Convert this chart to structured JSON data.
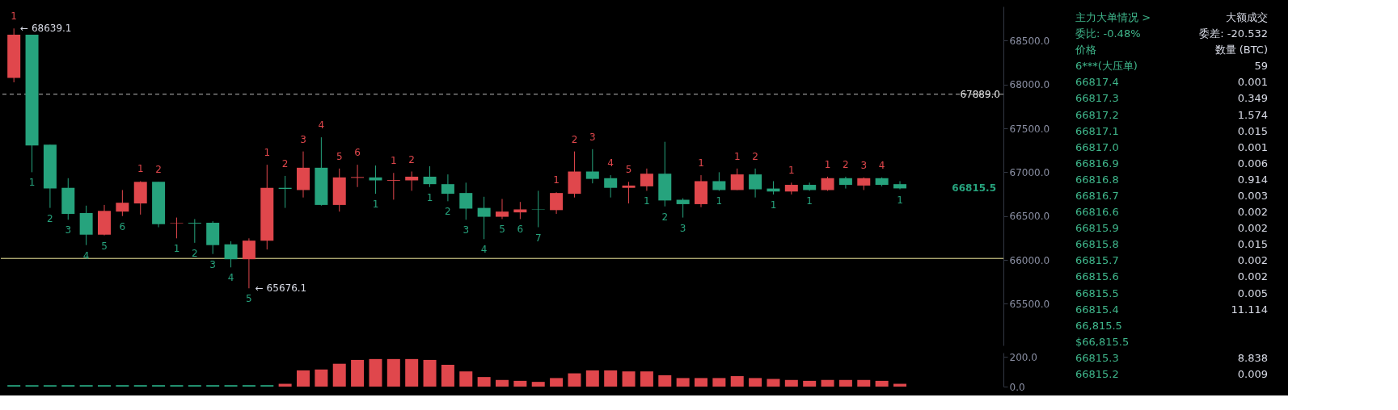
{
  "chart_data": [
    {
      "type": "candlestick",
      "categories": [
        null,
        null,
        null,
        null,
        null,
        null,
        null,
        null,
        null,
        null,
        null,
        null,
        null,
        null,
        null,
        null,
        null,
        null,
        null,
        null,
        null,
        null,
        null,
        null,
        null,
        null,
        null,
        null,
        null,
        null,
        null,
        null,
        null,
        null,
        null,
        null,
        null,
        null,
        null,
        null,
        null,
        null,
        null,
        null,
        null,
        null,
        null,
        null,
        null,
        null,
        null,
        null,
        null,
        null,
        null
      ],
      "ohlc": [
        [
          68076,
          68639.1,
          68025,
          68568
        ],
        [
          68568,
          68568,
          67000,
          67305
        ],
        [
          67314,
          67314,
          66593,
          66814
        ],
        [
          66822,
          66932,
          66458,
          66525
        ],
        [
          66534,
          66619,
          66169,
          66288
        ],
        [
          66288,
          66627,
          66280,
          66559
        ],
        [
          66551,
          66797,
          66500,
          66652
        ],
        [
          66644,
          66898,
          66517,
          66890
        ],
        [
          66890,
          66890,
          66373,
          66407
        ],
        [
          66415,
          66483,
          66246,
          66420
        ],
        [
          66424,
          66466,
          66195,
          66415
        ],
        [
          66424,
          66441,
          66068,
          66169
        ],
        [
          66178,
          66212,
          65915,
          66008
        ],
        [
          66008,
          66246,
          65676.1,
          66220
        ],
        [
          66220,
          67085,
          66119,
          66822
        ],
        [
          66822,
          66958,
          66593,
          66810
        ],
        [
          66797,
          67237,
          66712,
          67051
        ],
        [
          67051,
          67398,
          66619,
          66627
        ],
        [
          66627,
          67042,
          66551,
          66941
        ],
        [
          66936,
          67085,
          66831,
          66945
        ],
        [
          66941,
          67076,
          66754,
          66907
        ],
        [
          66903,
          66992,
          66687,
          66911
        ],
        [
          66907,
          67008,
          66788,
          66949
        ],
        [
          66949,
          67068,
          66831,
          66864
        ],
        [
          66864,
          66975,
          66669,
          66754
        ],
        [
          66763,
          66881,
          66458,
          66585
        ],
        [
          66593,
          66720,
          66237,
          66492
        ],
        [
          66492,
          66695,
          66466,
          66551
        ],
        [
          66542,
          66661,
          66466,
          66576
        ],
        [
          66580,
          66788,
          66373,
          66576
        ],
        [
          66568,
          66771,
          66525,
          66763
        ],
        [
          66754,
          67237,
          66712,
          67008
        ],
        [
          67008,
          67263,
          66873,
          66924
        ],
        [
          66932,
          66966,
          66712,
          66822
        ],
        [
          66822,
          66890,
          66644,
          66848
        ],
        [
          66839,
          67042,
          66788,
          66983
        ],
        [
          66983,
          67347,
          66610,
          66678
        ],
        [
          66686,
          66703,
          66483,
          66636
        ],
        [
          66636,
          66966,
          66602,
          66898
        ],
        [
          66898,
          67000,
          66788,
          66797
        ],
        [
          66797,
          67042,
          66797,
          66975
        ],
        [
          66975,
          67042,
          66712,
          66805
        ],
        [
          66814,
          66898,
          66746,
          66780
        ],
        [
          66780,
          66881,
          66746,
          66856
        ],
        [
          66856,
          66881,
          66788,
          66797
        ],
        [
          66797,
          66949,
          66788,
          66932
        ],
        [
          66932,
          66949,
          66814,
          66856
        ],
        [
          66848,
          66941,
          66797,
          66932
        ],
        [
          66932,
          66941,
          66839,
          66856
        ],
        [
          66864,
          66898,
          66805,
          66815.5
        ],
        null,
        null,
        null,
        null,
        null
      ],
      "colors": [
        "#e0474c",
        "#26a37d",
        "#26a37d",
        "#26a37d",
        "#26a37d",
        "#e0474c",
        "#e0474c",
        "#e0474c",
        "#26a37d",
        "#e0474c",
        "#26a37d",
        "#26a37d",
        "#26a37d",
        "#e0474c",
        "#e0474c",
        "#26a37d",
        "#e0474c",
        "#26a37d",
        "#e0474c",
        "#e0474c",
        "#26a37d",
        "#e0474c",
        "#e0474c",
        "#26a37d",
        "#26a37d",
        "#26a37d",
        "#26a37d",
        "#e0474c",
        "#e0474c",
        "#26a37d",
        "#e0474c",
        "#e0474c",
        "#26a37d",
        "#26a37d",
        "#e0474c",
        "#e0474c",
        "#26a37d",
        "#26a37d",
        "#e0474c",
        "#26a37d",
        "#e0474c",
        "#26a37d",
        "#26a37d",
        "#e0474c",
        "#26a37d",
        "#e0474c",
        "#26a37d",
        "#e0474c",
        "#26a37d",
        "#26a37d",
        null,
        null,
        null,
        null,
        null
      ],
      "value_labels": [
        "1",
        "1",
        "2",
        "3",
        "4",
        "5",
        "6",
        "1",
        "2",
        "1",
        "2",
        "3",
        "4",
        "5",
        "1",
        "2",
        "3",
        "4",
        "5",
        "6",
        "1",
        "1",
        "2",
        "1",
        "2",
        "3",
        "4",
        "5",
        "6",
        "7",
        "1",
        "2",
        "3",
        "4",
        "5",
        "1",
        "2",
        "3",
        "1",
        "1",
        "1",
        "2",
        "1",
        "1",
        "1",
        "1",
        "2",
        "3",
        "4",
        "1",
        null,
        null,
        null,
        null,
        null
      ],
      "ylim": [
        65025,
        68890
      ],
      "yticks": [
        {
          "value": 65500,
          "label": "65500.0"
        },
        {
          "value": 66000,
          "label": "66000.0"
        },
        {
          "value": 66500,
          "label": "66500.0"
        },
        {
          "value": 67000,
          "label": "67000.0"
        },
        {
          "value": 67500,
          "label": "67500.0"
        },
        {
          "value": 68000,
          "label": "68000.0"
        },
        {
          "value": 68500,
          "label": "68500.0"
        }
      ],
      "ref_lines": [
        {
          "axis": "y",
          "value": 67889.0,
          "label": "67889.0",
          "color": "#bbbbbb",
          "line_style": "dashed"
        },
        {
          "axis": "y",
          "value": 66017,
          "color": "#f3eea0"
        }
      ],
      "annotations": [
        "← 68639.1",
        "← 65676.1",
        "66815.5",
        "主力大单情况 >\t大额成交",
        "委比: -0.48%\t委差: -20.532",
        "价格\t数量 (BTC)",
        "6***(大压单)\t59",
        "66817.4\t0.001",
        "66817.3\t0.349",
        "66817.2\t1.574",
        "66817.1\t0.015",
        "66817.0\t0.001",
        "66816.9\t0.006",
        "66816.8\t0.914",
        "66816.7\t0.003",
        "66816.6\t0.002",
        "66815.9\t0.002",
        "66815.8\t0.015",
        "66815.7\t0.002",
        "66815.6\t0.002",
        "66815.5\t0.005",
        "66815.4\t11.114",
        "66,815.5",
        "$66,815.5",
        "66815.3\t8.838",
        "66815.2\t0.009"
      ],
      "grid": false
    },
    {
      "type": "bar",
      "categories": [
        null,
        null,
        null,
        null,
        null,
        null,
        null,
        null,
        null,
        null,
        null,
        null,
        null,
        null,
        null,
        null,
        null,
        null,
        null,
        null,
        null,
        null,
        null,
        null,
        null,
        null,
        null,
        null,
        null,
        null,
        null,
        null,
        null,
        null,
        null,
        null,
        null,
        null,
        null,
        null,
        null,
        null,
        null,
        null,
        null,
        null,
        null,
        null,
        null,
        null,
        null,
        null,
        null,
        null,
        null
      ],
      "values": [
        10,
        10,
        10,
        10,
        10,
        10,
        10,
        10,
        10,
        10,
        10,
        10,
        10,
        10,
        10,
        19,
        110,
        116,
        155,
        181,
        187,
        187,
        187,
        181,
        148,
        103,
        65,
        45,
        39,
        32,
        58,
        90,
        110,
        110,
        103,
        103,
        77,
        58,
        58,
        58,
        71,
        58,
        52,
        45,
        39,
        45,
        45,
        45,
        39,
        19,
        null,
        null,
        null,
        null,
        null
      ],
      "colors": [
        "#26a37d",
        "#26a37d",
        "#26a37d",
        "#26a37d",
        "#26a37d",
        "#26a37d",
        "#26a37d",
        "#26a37d",
        "#26a37d",
        "#26a37d",
        "#26a37d",
        "#26a37d",
        "#26a37d",
        "#26a37d",
        "#26a37d",
        "#e0474c",
        "#e0474c",
        "#e0474c",
        "#e0474c",
        "#e0474c",
        "#e0474c",
        "#e0474c",
        "#e0474c",
        "#e0474c",
        "#e0474c",
        "#e0474c",
        "#e0474c",
        "#e0474c",
        "#e0474c",
        "#e0474c",
        "#e0474c",
        "#e0474c",
        "#e0474c",
        "#e0474c",
        "#e0474c",
        "#e0474c",
        "#e0474c",
        "#e0474c",
        "#e0474c",
        "#e0474c",
        "#e0474c",
        "#e0474c",
        "#e0474c",
        "#e0474c",
        "#e0474c",
        "#e0474c",
        "#e0474c",
        "#e0474c",
        "#e0474c",
        "#e0474c",
        null,
        null,
        null,
        null,
        null
      ],
      "ylim": [
        0,
        230
      ],
      "yticks": [
        {
          "value": 0,
          "label": "0.0"
        },
        {
          "value": 200,
          "label": "200.0"
        }
      ],
      "grid": false
    }
  ]
}
